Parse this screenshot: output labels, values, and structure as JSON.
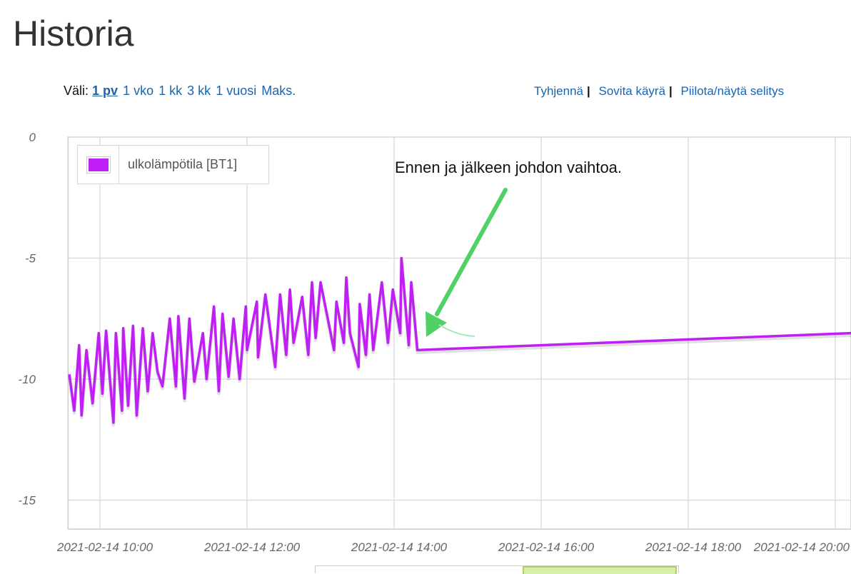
{
  "page": {
    "title": "Historia"
  },
  "range": {
    "label": "Väli:",
    "options": [
      "1 pv",
      "1 vko",
      "1 kk",
      "3 kk",
      "1 vuosi",
      "Maks."
    ],
    "selected": "1 pv"
  },
  "tools": {
    "clear": "Tyhjennä",
    "fit": "Sovita käyrä",
    "toggle_legend": "Piilota/näytä selitys"
  },
  "annotation": {
    "text": "Ennen ja jälkeen johdon vaihtoa.",
    "arrow_color": "#4fd165"
  },
  "colors": {
    "series": "#bf1ff5",
    "grid": "#dddddd"
  },
  "chart_data": {
    "type": "line",
    "date": "2021-02-14",
    "legend": {
      "label": "ulkolämpötila [BT1]",
      "placement": "top-left"
    },
    "grid": true,
    "ylim": [
      -16.2,
      0
    ],
    "yticks": [
      0,
      -5,
      -10,
      -15
    ],
    "xlim": [
      "09:34",
      "20:13"
    ],
    "xticks": [
      "2021-02-14 10:00",
      "2021-02-14 12:00",
      "2021-02-14 14:00",
      "2021-02-14 16:00",
      "2021-02-14 18:00",
      "2021-02-14 20:00"
    ],
    "series": [
      {
        "name": "ulkolämpötila [BT1]",
        "x": [
          "09:35",
          "09:39",
          "09:43",
          "09:45",
          "09:49",
          "09:54",
          "09:59",
          "10:02",
          "10:05",
          "10:11",
          "10:13",
          "10:18",
          "10:19",
          "10:23",
          "10:27",
          "10:30",
          "10:35",
          "10:39",
          "10:43",
          "10:47",
          "10:51",
          "10:57",
          "11:02",
          "11:04",
          "11:09",
          "11:13",
          "11:17",
          "11:24",
          "11:27",
          "11:33",
          "11:37",
          "11:40",
          "11:45",
          "11:49",
          "11:54",
          "11:59",
          "12:00",
          "12:08",
          "12:09",
          "12:15",
          "12:23",
          "12:27",
          "12:32",
          "12:35",
          "12:38",
          "12:45",
          "12:50",
          "12:53",
          "12:56",
          "13:00",
          "13:11",
          "13:13",
          "13:19",
          "13:21",
          "13:24",
          "13:31",
          "13:32",
          "13:37",
          "13:40",
          "13:43",
          "13:50",
          "13:55",
          "13:59",
          "14:05",
          "14:06",
          "14:12",
          "14:14",
          "14:19",
          "20:13"
        ],
        "y": [
          -9.8,
          -11.3,
          -8.6,
          -11.5,
          -8.8,
          -11.0,
          -8.1,
          -10.6,
          -8.0,
          -11.8,
          -8.1,
          -11.3,
          -7.9,
          -11.1,
          -7.8,
          -11.5,
          -7.9,
          -10.5,
          -8.1,
          -9.7,
          -10.3,
          -7.5,
          -10.3,
          -7.4,
          -10.8,
          -7.5,
          -10.1,
          -8.1,
          -10.0,
          -7.0,
          -10.5,
          -7.3,
          -9.9,
          -7.5,
          -10.0,
          -7.0,
          -8.8,
          -6.8,
          -9.1,
          -6.5,
          -9.5,
          -6.5,
          -9.0,
          -6.3,
          -8.5,
          -6.6,
          -9.0,
          -6.0,
          -8.3,
          -6.0,
          -8.8,
          -6.8,
          -8.5,
          -5.8,
          -8.1,
          -9.5,
          -6.9,
          -9.0,
          -6.5,
          -8.8,
          -6.0,
          -8.5,
          -6.3,
          -8.1,
          -5.0,
          -8.6,
          -6.0,
          -8.8,
          -8.1
        ]
      }
    ]
  }
}
